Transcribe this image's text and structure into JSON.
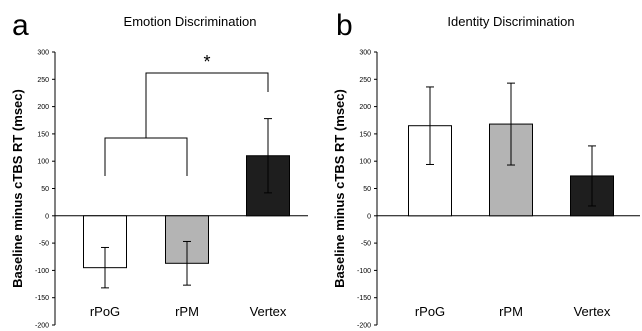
{
  "chart_data": [
    {
      "type": "bar",
      "panel_label": "a",
      "title": "Emotion Discrimination",
      "ylabel": "Baseline minus cTBS RT (msec)",
      "ylim": [
        -200,
        300
      ],
      "yticks": [
        -200,
        -150,
        -100,
        -50,
        0,
        50,
        100,
        150,
        200,
        250,
        300
      ],
      "categories": [
        "rPoG",
        "rPM",
        "Vertex"
      ],
      "values": [
        -95,
        -87,
        110
      ],
      "errors": [
        37,
        40,
        68
      ],
      "bar_colors": [
        "#ffffff",
        "#b4b4b4",
        "#1e1e1e"
      ],
      "significance": {
        "groups": [
          [
            0,
            1
          ],
          [
            2
          ]
        ],
        "label": "*"
      }
    },
    {
      "type": "bar",
      "panel_label": "b",
      "title": "Identity Discrimination",
      "ylabel": "Baseline minus cTBS RT (msec)",
      "ylim": [
        -200,
        300
      ],
      "yticks": [
        -200,
        -150,
        -100,
        -50,
        0,
        50,
        100,
        150,
        200,
        250,
        300
      ],
      "categories": [
        "rPoG",
        "rPM",
        "Vertex"
      ],
      "values": [
        165,
        168,
        73
      ],
      "errors": [
        71,
        75,
        55
      ],
      "bar_colors": [
        "#ffffff",
        "#b4b4b4",
        "#1e1e1e"
      ]
    }
  ]
}
